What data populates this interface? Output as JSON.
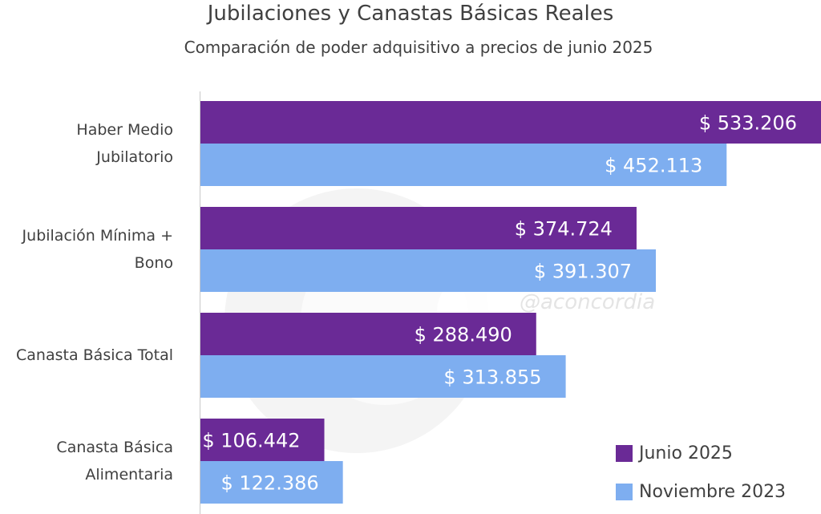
{
  "chart_data": {
    "type": "bar",
    "orientation": "horizontal",
    "title": "Jubilaciones y Canastas Básicas Reales",
    "subtitle": "Comparación de poder adquisitivo a precios de junio 2025",
    "categories": [
      [
        "Haber Medio",
        "Jubilatorio"
      ],
      [
        "Jubilación Mínima +",
        "Bono"
      ],
      [
        "Canasta Básica Total"
      ],
      [
        "Canasta Básica",
        "Alimentaria"
      ]
    ],
    "series": [
      {
        "name": "Junio 2025",
        "color": "#6a2a96",
        "values": [
          533206,
          374724,
          288490,
          106442
        ],
        "labels": [
          "$ 533.206",
          "$ 374.724",
          "$ 288.490",
          "$ 106.442"
        ]
      },
      {
        "name": "Noviembre 2023",
        "color": "#7eaef0",
        "values": [
          452113,
          391307,
          313855,
          122386
        ],
        "labels": [
          "$ 452.113",
          "$ 391.307",
          "$ 313.855",
          "$ 122.386"
        ]
      }
    ],
    "xlim": [
      0,
      533206
    ],
    "grid": false,
    "legend_position": "bottom-right"
  },
  "watermark": "@aconcordia"
}
